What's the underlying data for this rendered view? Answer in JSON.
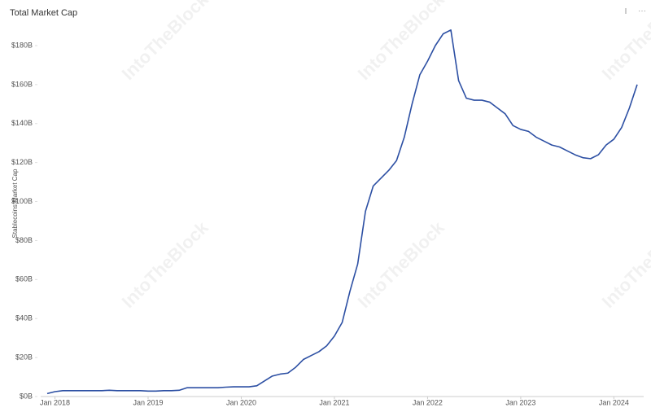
{
  "chart_data": {
    "type": "line",
    "title": "Total Market Cap",
    "y_label": "Stablecoins Market Cap",
    "watermark": "IntoTheBlock",
    "x": [
      "2017-12",
      "2018-01",
      "2018-02",
      "2018-03",
      "2018-04",
      "2018-05",
      "2018-06",
      "2018-07",
      "2018-08",
      "2018-09",
      "2018-10",
      "2018-11",
      "2018-12",
      "2019-01",
      "2019-02",
      "2019-03",
      "2019-04",
      "2019-05",
      "2019-06",
      "2019-07",
      "2019-08",
      "2019-09",
      "2019-10",
      "2019-11",
      "2019-12",
      "2020-01",
      "2020-02",
      "2020-03",
      "2020-04",
      "2020-05",
      "2020-06",
      "2020-07",
      "2020-08",
      "2020-09",
      "2020-10",
      "2020-11",
      "2020-12",
      "2021-01",
      "2021-02",
      "2021-03",
      "2021-04",
      "2021-05",
      "2021-06",
      "2021-07",
      "2021-08",
      "2021-09",
      "2021-10",
      "2021-11",
      "2021-12",
      "2022-01",
      "2022-02",
      "2022-03",
      "2022-04",
      "2022-05",
      "2022-06",
      "2022-07",
      "2022-08",
      "2022-09",
      "2022-10",
      "2022-11",
      "2022-12",
      "2023-01",
      "2023-02",
      "2023-03",
      "2023-04",
      "2023-05",
      "2023-06",
      "2023-07",
      "2023-08",
      "2023-09",
      "2023-10",
      "2023-11",
      "2023-12",
      "2024-01",
      "2024-02",
      "2024-03",
      "2024-04"
    ],
    "series": [
      {
        "name": "Total Market Cap",
        "color": "#2c4fa3",
        "values": [
          1.5,
          2.5,
          3,
          3,
          3,
          3,
          3,
          3,
          3.2,
          3,
          3,
          3,
          3,
          2.8,
          2.8,
          3,
          3,
          3.2,
          4.5,
          4.5,
          4.5,
          4.5,
          4.5,
          4.8,
          5,
          5,
          5,
          5.5,
          8,
          10.5,
          11.5,
          12,
          15,
          19,
          21,
          23,
          26,
          31,
          38,
          54,
          68,
          95,
          108,
          112,
          116,
          121,
          133,
          150,
          165,
          172,
          180,
          186,
          188,
          162,
          153,
          152,
          152,
          151,
          148,
          145,
          139,
          137,
          136,
          133,
          131,
          129,
          128,
          126,
          124,
          122.5,
          122,
          124,
          129,
          132,
          138,
          148,
          160
        ]
      }
    ],
    "xlim": [
      "2017-12",
      "2024-04"
    ],
    "xticks": [
      {
        "value": "2018-01",
        "label": "Jan 2018"
      },
      {
        "value": "2019-01",
        "label": "Jan 2019"
      },
      {
        "value": "2020-01",
        "label": "Jan 2020"
      },
      {
        "value": "2021-01",
        "label": "Jan 2021"
      },
      {
        "value": "2022-01",
        "label": "Jan 2022"
      },
      {
        "value": "2023-01",
        "label": "Jan 2023"
      },
      {
        "value": "2024-01",
        "label": "Jan 2024"
      }
    ],
    "ylim": [
      0,
      180
    ],
    "yticks": [
      {
        "value": 0,
        "label": "$0B"
      },
      {
        "value": 20,
        "label": "$20B"
      },
      {
        "value": 40,
        "label": "$40B"
      },
      {
        "value": 60,
        "label": "$60B"
      },
      {
        "value": 80,
        "label": "$80B"
      },
      {
        "value": 100,
        "label": "$100B"
      },
      {
        "value": 120,
        "label": "$120B"
      },
      {
        "value": 140,
        "label": "$140B"
      },
      {
        "value": 160,
        "label": "$160B"
      },
      {
        "value": 180,
        "label": "$180B"
      }
    ]
  }
}
